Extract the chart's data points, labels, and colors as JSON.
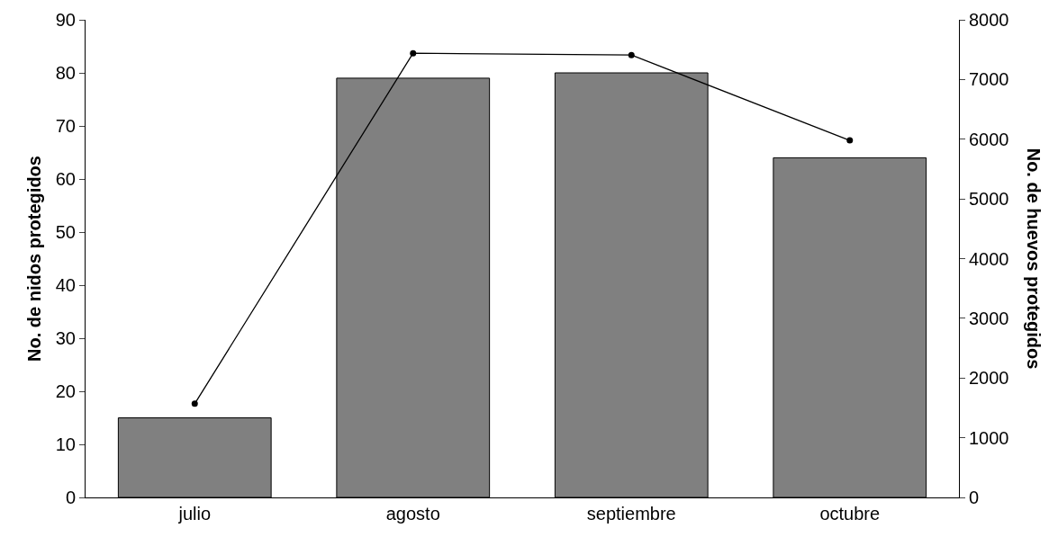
{
  "chart_data": {
    "type": "bar",
    "ylabel": "No. de nidos protegidos",
    "y2label": "No. de huevos protegidos",
    "categories": [
      "julio",
      "agosto",
      "septiembre",
      "octubre"
    ],
    "series": [
      {
        "color": "#808080",
        "values": [
          15,
          79,
          80,
          64
        ]
      },
      {
        "type": "line",
        "axis": "y2",
        "color": "#000000",
        "marker": "circle",
        "values": [
          1570,
          7440,
          7410,
          5980
        ]
      }
    ],
    "ylim": [
      0,
      90
    ],
    "yticks": [
      0,
      10,
      20,
      30,
      40,
      50,
      60,
      70,
      80,
      90
    ],
    "y2lim": [
      0,
      8000
    ],
    "y2ticks": [
      0,
      1000,
      2000,
      3000,
      4000,
      5000,
      6000,
      7000,
      8000
    ],
    "grid": false,
    "legend": false
  }
}
